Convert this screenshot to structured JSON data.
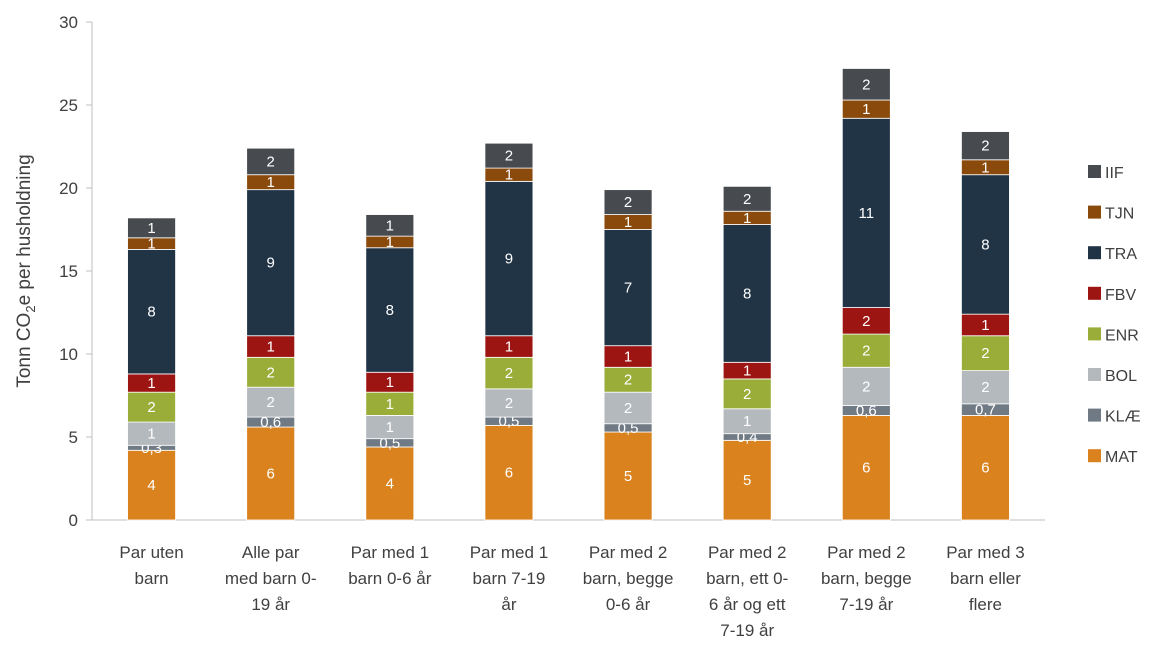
{
  "chart_data": {
    "type": "bar",
    "stacked": true,
    "title": "",
    "xlabel": "",
    "ylabel": {
      "main": "Tonn CO",
      "sub": "2",
      "rest": "e per husholdning"
    },
    "ylim": [
      0,
      30
    ],
    "yticks": [
      0,
      5,
      10,
      15,
      20,
      25,
      30
    ],
    "grid": false,
    "legend_position": "right",
    "categories": [
      [
        "Par uten",
        "barn"
      ],
      [
        "Alle par",
        "med barn 0-",
        "19 år"
      ],
      [
        "Par med 1",
        "barn 0-6 år"
      ],
      [
        "Par med 1",
        "barn 7-19",
        "år"
      ],
      [
        "Par med 2",
        "barn, begge",
        "0-6 år"
      ],
      [
        "Par med 2",
        "barn, ett 0-",
        "6 år og ett",
        "7-19 år"
      ],
      [
        "Par med 2",
        "barn, begge",
        "7-19 år"
      ],
      [
        "Par med 3",
        "barn eller",
        "flere"
      ]
    ],
    "series": [
      {
        "name": "MAT",
        "color": "#d9821e",
        "values": [
          4.2,
          5.6,
          4.4,
          5.7,
          5.3,
          4.8,
          6.3,
          6.3
        ],
        "labels": [
          "4",
          "6",
          "4",
          "6",
          "5",
          "5",
          "6",
          "6"
        ]
      },
      {
        "name": "KLÆ",
        "color": "#707a84",
        "values": [
          0.3,
          0.6,
          0.5,
          0.5,
          0.5,
          0.4,
          0.6,
          0.7
        ],
        "labels": [
          "0,3",
          "0,6",
          "0,5",
          "0,5",
          "0,5",
          "0,4",
          "0,6",
          "0,7"
        ]
      },
      {
        "name": "BOL",
        "color": "#b4b9be",
        "values": [
          1.4,
          1.8,
          1.4,
          1.7,
          1.9,
          1.5,
          2.3,
          2.0
        ],
        "labels": [
          "1",
          "2",
          "1",
          "2",
          "2",
          "1",
          "2",
          "2"
        ]
      },
      {
        "name": "ENR",
        "color": "#9aad39",
        "values": [
          1.8,
          1.8,
          1.4,
          1.9,
          1.5,
          1.8,
          2.0,
          2.1
        ],
        "labels": [
          "2",
          "2",
          "1",
          "2",
          "2",
          "2",
          "2",
          "2"
        ]
      },
      {
        "name": "FBV",
        "color": "#9c1512",
        "values": [
          1.1,
          1.3,
          1.2,
          1.3,
          1.3,
          1.0,
          1.6,
          1.3
        ],
        "labels": [
          "1",
          "1",
          "1",
          "1",
          "1",
          "1",
          "2",
          "1"
        ]
      },
      {
        "name": "TRA",
        "color": "#213446",
        "values": [
          7.5,
          8.8,
          7.5,
          9.3,
          7.0,
          8.3,
          11.4,
          8.4
        ],
        "labels": [
          "8",
          "9",
          "8",
          "9",
          "7",
          "8",
          "11",
          "8"
        ]
      },
      {
        "name": "TJN",
        "color": "#8a4a0c",
        "values": [
          0.7,
          0.9,
          0.7,
          0.8,
          0.9,
          0.8,
          1.1,
          0.9
        ],
        "labels": [
          "1",
          "1",
          "1",
          "1",
          "1",
          "1",
          "1",
          "1"
        ]
      },
      {
        "name": "IIF",
        "color": "#474b50",
        "values": [
          1.2,
          1.6,
          1.3,
          1.5,
          1.5,
          1.5,
          1.9,
          1.7
        ],
        "labels": [
          "1",
          "2",
          "1",
          "2",
          "2",
          "2",
          "2",
          "2"
        ]
      }
    ]
  }
}
